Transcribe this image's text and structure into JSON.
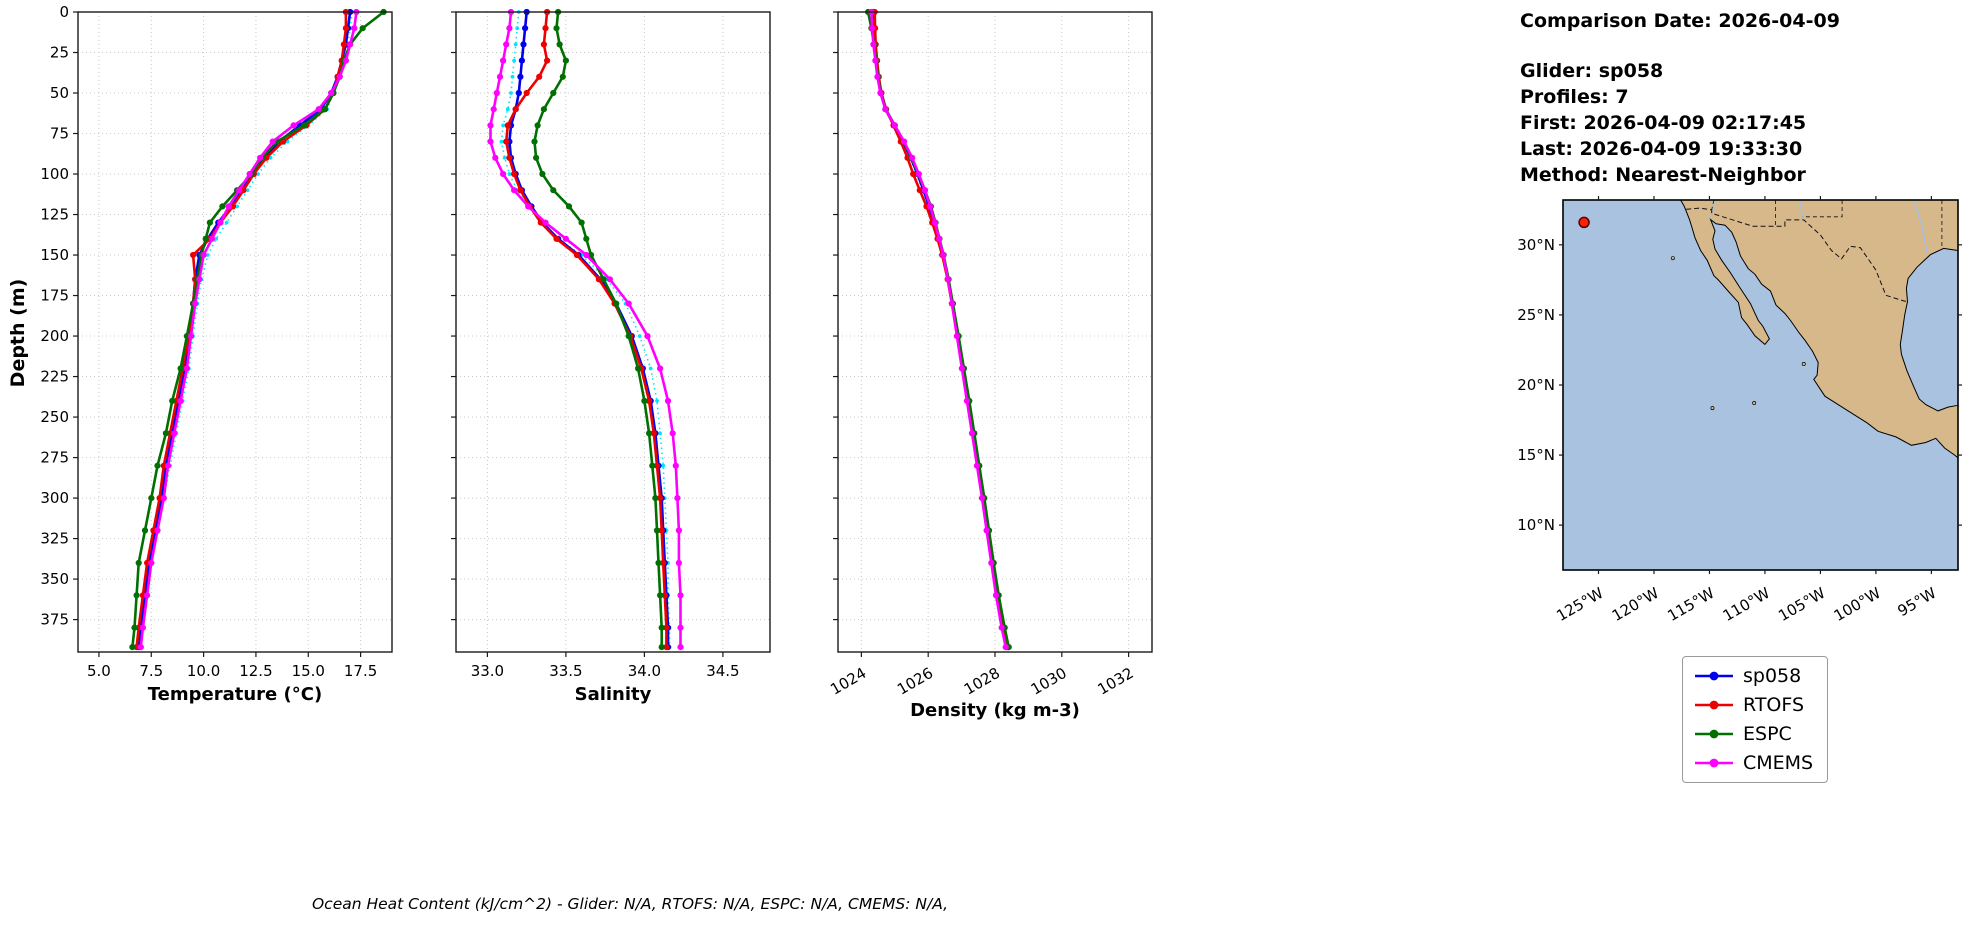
{
  "info": {
    "comparison_date": "Comparison Date: 2026-04-09",
    "glider": "Glider: sp058",
    "profiles": "Profiles: 7",
    "first": "First: 2026-04-09 02:17:45",
    "last": "Last: 2026-04-09 19:33:30",
    "method": "Method: Nearest-Neighbor"
  },
  "caption": "Ocean Heat Content (kJ/cm^2) - Glider: N/A,  RTOFS: N/A,  ESPC: N/A,  CMEMS: N/A,",
  "axes": {
    "depth_label": "Depth (m)",
    "depth_lim": [
      0,
      395
    ],
    "depth_ticks": [
      0,
      25,
      50,
      75,
      100,
      125,
      150,
      175,
      200,
      225,
      250,
      275,
      300,
      325,
      350,
      375
    ]
  },
  "legend": {
    "items": [
      {
        "label": "sp058",
        "color": "#0000ee"
      },
      {
        "label": "RTOFS",
        "color": "#ee0000"
      },
      {
        "label": "ESPC",
        "color": "#007000"
      },
      {
        "label": "CMEMS",
        "color": "#ff00ff"
      }
    ]
  },
  "map": {
    "land_color": "#d6b88a",
    "ocean_color": "#a9c2e0",
    "lat_ticks": [
      30,
      25,
      20,
      15,
      10
    ],
    "lat_labels": [
      "30°N",
      "25°N",
      "20°N",
      "15°N",
      "10°N"
    ],
    "lon_ticks": [
      -125,
      -120,
      -115,
      -110,
      -105,
      -100,
      -95
    ],
    "lon_labels": [
      "125°W",
      "120°W",
      "115°W",
      "110°W",
      "105°W",
      "100°W",
      "95°W"
    ],
    "marker": {
      "lon": -126.3,
      "lat": 31.6,
      "color": "#ff2200"
    }
  },
  "chart_data": [
    {
      "id": "temperature",
      "type": "line",
      "xlabel": "Temperature (°C)",
      "xlim": [
        4,
        19
      ],
      "xticks": [
        5,
        7.5,
        10,
        12.5,
        15,
        17.5
      ],
      "xtick_labels": [
        "5.0",
        "7.5",
        "10.0",
        "12.5",
        "15.0",
        "17.5"
      ],
      "rotate_xticks": false,
      "ylabel": "Depth (m)",
      "grid": true,
      "depths": [
        0,
        10,
        20,
        30,
        40,
        50,
        60,
        70,
        80,
        90,
        100,
        110,
        120,
        130,
        140,
        150,
        165,
        180,
        200,
        220,
        240,
        260,
        280,
        300,
        320,
        340,
        360,
        380,
        392
      ],
      "series": [
        {
          "name": "glider-individual-profiles",
          "color": "#00e5ff",
          "style": "dotted",
          "values": [
            17.1,
            17.0,
            16.9,
            16.7,
            16.5,
            16.2,
            15.9,
            15.0,
            14.0,
            13.2,
            12.6,
            12.1,
            11.6,
            11.1,
            10.6,
            10.2,
            9.9,
            9.7,
            9.5,
            9.3,
            9.0,
            8.7,
            8.4,
            8.1,
            7.8,
            7.5,
            7.3,
            7.1,
            7.0
          ]
        },
        {
          "name": "sp058",
          "color": "#0000ee",
          "style": "solid",
          "values": [
            17.0,
            16.9,
            16.8,
            16.6,
            16.4,
            16.1,
            15.6,
            14.6,
            13.6,
            12.9,
            12.3,
            11.8,
            11.3,
            10.7,
            10.2,
            9.8,
            9.6,
            9.5,
            9.3,
            9.1,
            8.8,
            8.5,
            8.2,
            8.0,
            7.7,
            7.4,
            7.2,
            7.0,
            6.9
          ]
        },
        {
          "name": "RTOFS",
          "color": "#ee0000",
          "style": "solid",
          "values": [
            16.8,
            16.8,
            16.7,
            16.6,
            16.4,
            16.2,
            15.8,
            14.9,
            13.8,
            13.0,
            12.4,
            11.9,
            11.4,
            10.8,
            10.3,
            9.5,
            9.6,
            9.5,
            9.3,
            9.0,
            8.7,
            8.4,
            8.1,
            7.9,
            7.6,
            7.3,
            7.1,
            6.9,
            6.8
          ]
        },
        {
          "name": "ESPC",
          "color": "#007000",
          "style": "solid",
          "values": [
            18.6,
            17.6,
            17.0,
            16.7,
            16.5,
            16.2,
            15.8,
            14.8,
            13.5,
            12.8,
            12.3,
            11.6,
            10.9,
            10.3,
            10.1,
            9.9,
            9.7,
            9.5,
            9.2,
            8.9,
            8.5,
            8.2,
            7.8,
            7.5,
            7.2,
            6.9,
            6.8,
            6.7,
            6.6
          ]
        },
        {
          "name": "CMEMS",
          "color": "#ff00ff",
          "style": "solid",
          "values": [
            17.3,
            17.2,
            17.0,
            16.8,
            16.5,
            16.1,
            15.5,
            14.3,
            13.3,
            12.7,
            12.2,
            11.7,
            11.2,
            10.8,
            10.4,
            10.0,
            9.8,
            9.6,
            9.4,
            9.2,
            8.9,
            8.6,
            8.3,
            8.1,
            7.8,
            7.5,
            7.3,
            7.1,
            7.0
          ]
        }
      ]
    },
    {
      "id": "salinity",
      "type": "line",
      "xlabel": "Salinity",
      "xlim": [
        32.8,
        34.8
      ],
      "xticks": [
        33.0,
        33.5,
        34.0,
        34.5
      ],
      "xtick_labels": [
        "33.0",
        "33.5",
        "34.0",
        "34.5"
      ],
      "rotate_xticks": false,
      "ylabel": "Depth (m)",
      "grid": true,
      "depths": [
        0,
        10,
        20,
        30,
        40,
        50,
        60,
        70,
        80,
        90,
        100,
        110,
        120,
        130,
        140,
        150,
        165,
        180,
        200,
        220,
        240,
        260,
        280,
        300,
        320,
        340,
        360,
        380,
        392
      ],
      "series": [
        {
          "name": "glider-individual-profiles",
          "color": "#00e5ff",
          "style": "dotted",
          "values": [
            33.2,
            33.19,
            33.18,
            33.17,
            33.16,
            33.15,
            33.13,
            33.1,
            33.09,
            33.11,
            33.14,
            33.19,
            33.26,
            33.34,
            33.45,
            33.6,
            33.76,
            33.88,
            33.97,
            34.04,
            34.08,
            34.1,
            34.12,
            34.13,
            34.14,
            34.15,
            34.15,
            34.16,
            34.16
          ]
        },
        {
          "name": "sp058",
          "color": "#0000ee",
          "style": "solid",
          "values": [
            33.25,
            33.24,
            33.23,
            33.22,
            33.21,
            33.2,
            33.18,
            33.15,
            33.14,
            33.15,
            33.18,
            33.22,
            33.28,
            33.35,
            33.45,
            33.58,
            33.72,
            33.82,
            33.92,
            33.99,
            34.04,
            34.07,
            34.09,
            34.11,
            34.12,
            34.13,
            34.14,
            34.15,
            34.15
          ]
        },
        {
          "name": "RTOFS",
          "color": "#ee0000",
          "style": "solid",
          "values": [
            33.38,
            33.37,
            33.36,
            33.38,
            33.33,
            33.25,
            33.18,
            33.13,
            33.12,
            33.14,
            33.17,
            33.21,
            33.27,
            33.34,
            33.44,
            33.57,
            33.71,
            33.81,
            33.91,
            33.98,
            34.03,
            34.06,
            34.08,
            34.1,
            34.11,
            34.12,
            34.13,
            34.14,
            34.14
          ]
        },
        {
          "name": "ESPC",
          "color": "#007000",
          "style": "solid",
          "values": [
            33.45,
            33.44,
            33.46,
            33.5,
            33.48,
            33.42,
            33.36,
            33.32,
            33.3,
            33.31,
            33.35,
            33.42,
            33.52,
            33.6,
            33.63,
            33.66,
            33.74,
            33.82,
            33.9,
            33.96,
            34.0,
            34.03,
            34.05,
            34.07,
            34.08,
            34.09,
            34.1,
            34.11,
            34.11
          ]
        },
        {
          "name": "CMEMS",
          "color": "#ff00ff",
          "style": "solid",
          "values": [
            33.15,
            33.14,
            33.12,
            33.1,
            33.08,
            33.06,
            33.04,
            33.02,
            33.02,
            33.05,
            33.1,
            33.17,
            33.26,
            33.37,
            33.5,
            33.63,
            33.78,
            33.9,
            34.02,
            34.1,
            34.15,
            34.18,
            34.2,
            34.21,
            34.22,
            34.22,
            34.23,
            34.23,
            34.23
          ]
        }
      ]
    },
    {
      "id": "density",
      "type": "line",
      "xlabel": "Density (kg m-3)",
      "xlim": [
        1023.3,
        1032.7
      ],
      "xticks": [
        1024,
        1026,
        1028,
        1030,
        1032
      ],
      "xtick_labels": [
        "1024",
        "1026",
        "1028",
        "1030",
        "1032"
      ],
      "rotate_xticks": true,
      "ylabel": "Depth (m)",
      "grid": true,
      "depths": [
        0,
        10,
        20,
        30,
        40,
        50,
        60,
        70,
        80,
        90,
        100,
        110,
        120,
        130,
        140,
        150,
        165,
        180,
        200,
        220,
        240,
        260,
        280,
        300,
        320,
        340,
        360,
        380,
        392
      ],
      "series": [
        {
          "name": "glider-individual-profiles",
          "color": "#00e5ff",
          "style": "dotted",
          "values": [
            1024.33,
            1024.35,
            1024.38,
            1024.43,
            1024.48,
            1024.56,
            1024.7,
            1024.96,
            1025.22,
            1025.45,
            1025.65,
            1025.83,
            1026.0,
            1026.15,
            1026.29,
            1026.43,
            1026.58,
            1026.7,
            1026.87,
            1027.03,
            1027.19,
            1027.34,
            1027.49,
            1027.64,
            1027.78,
            1027.92,
            1028.06,
            1028.24,
            1028.37
          ]
        },
        {
          "name": "sp058",
          "color": "#0000ee",
          "style": "solid",
          "values": [
            1024.35,
            1024.37,
            1024.4,
            1024.45,
            1024.5,
            1024.58,
            1024.72,
            1024.98,
            1025.25,
            1025.48,
            1025.68,
            1025.86,
            1026.03,
            1026.18,
            1026.32,
            1026.45,
            1026.6,
            1026.73,
            1026.9,
            1027.06,
            1027.22,
            1027.37,
            1027.52,
            1027.67,
            1027.81,
            1027.95,
            1028.1,
            1028.28,
            1028.4
          ]
        },
        {
          "name": "RTOFS",
          "color": "#ee0000",
          "style": "solid",
          "values": [
            1024.4,
            1024.41,
            1024.43,
            1024.47,
            1024.52,
            1024.6,
            1024.74,
            1024.96,
            1025.18,
            1025.38,
            1025.55,
            1025.75,
            1025.95,
            1026.12,
            1026.28,
            1026.42,
            1026.58,
            1026.71,
            1026.88,
            1027.04,
            1027.2,
            1027.35,
            1027.5,
            1027.65,
            1027.79,
            1027.93,
            1028.07,
            1028.24,
            1028.36
          ]
        },
        {
          "name": "ESPC",
          "color": "#007000",
          "style": "solid",
          "values": [
            1024.2,
            1024.3,
            1024.38,
            1024.44,
            1024.5,
            1024.58,
            1024.73,
            1025.0,
            1025.27,
            1025.5,
            1025.7,
            1025.9,
            1026.08,
            1026.22,
            1026.34,
            1026.46,
            1026.61,
            1026.74,
            1026.91,
            1027.07,
            1027.23,
            1027.38,
            1027.53,
            1027.68,
            1027.82,
            1027.96,
            1028.11,
            1028.29,
            1028.41
          ]
        },
        {
          "name": "CMEMS",
          "color": "#ff00ff",
          "style": "solid",
          "values": [
            1024.3,
            1024.32,
            1024.36,
            1024.42,
            1024.48,
            1024.57,
            1024.72,
            1025.0,
            1025.28,
            1025.52,
            1025.72,
            1025.9,
            1026.06,
            1026.2,
            1026.33,
            1026.45,
            1026.59,
            1026.71,
            1026.86,
            1027.01,
            1027.16,
            1027.31,
            1027.46,
            1027.61,
            1027.75,
            1027.89,
            1028.03,
            1028.2,
            1028.32
          ]
        }
      ]
    }
  ]
}
